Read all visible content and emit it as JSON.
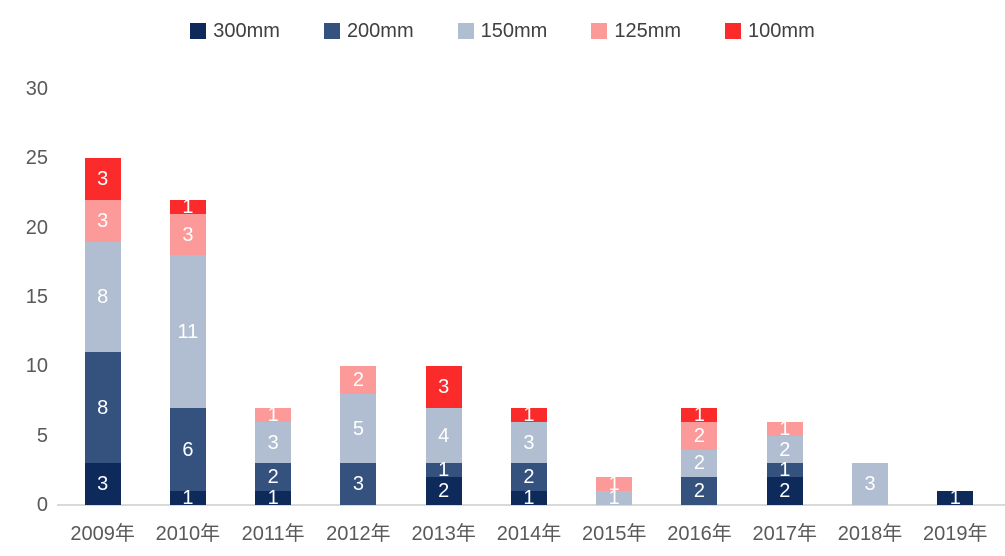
{
  "chart_data": {
    "type": "bar",
    "stacked": true,
    "title": "",
    "xlabel": "",
    "ylabel": "",
    "categories": [
      "2009年",
      "2010年",
      "2011年",
      "2012年",
      "2013年",
      "2014年",
      "2015年",
      "2016年",
      "2017年",
      "2018年",
      "2019年"
    ],
    "series": [
      {
        "name": "300mm",
        "color": "#0d2a5a",
        "values": [
          3,
          1,
          1,
          0,
          2,
          1,
          0,
          0,
          2,
          0,
          1
        ]
      },
      {
        "name": "200mm",
        "color": "#35527e",
        "values": [
          8,
          6,
          2,
          3,
          1,
          2,
          0,
          2,
          1,
          0,
          0
        ]
      },
      {
        "name": "150mm",
        "color": "#b1bdd0",
        "values": [
          8,
          11,
          3,
          5,
          4,
          3,
          1,
          2,
          2,
          3,
          0
        ]
      },
      {
        "name": "125mm",
        "color": "#fb9a99",
        "values": [
          3,
          3,
          1,
          2,
          0,
          0,
          1,
          2,
          1,
          0,
          0
        ]
      },
      {
        "name": "100mm",
        "color": "#fb2b2b",
        "values": [
          3,
          1,
          0,
          0,
          3,
          1,
          0,
          1,
          0,
          0,
          0
        ]
      }
    ],
    "totals": [
      25,
      22,
      7,
      10,
      10,
      7,
      2,
      7,
      6,
      3,
      1
    ],
    "ylim": [
      0,
      30
    ],
    "yticks": [
      0,
      5,
      10,
      15,
      20,
      25,
      30
    ],
    "legend_position": "top",
    "grid": false,
    "data_labels": true,
    "colors": {
      "axis_text": "#595959",
      "legend_text": "#404040",
      "axis_line": "#d9d9d9",
      "data_label_text": "#ffffff",
      "background": "#ffffff"
    }
  }
}
